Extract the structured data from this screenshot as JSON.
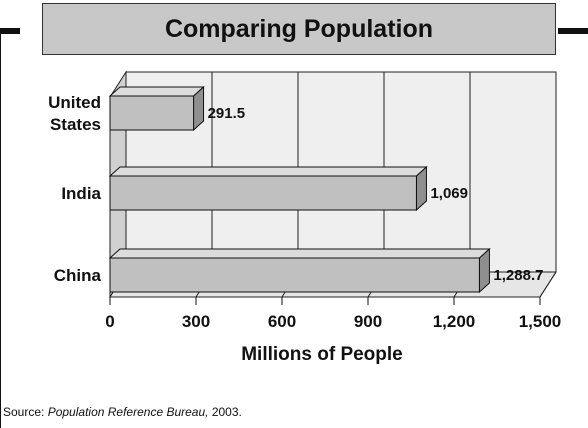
{
  "title": "Comparing Population",
  "source": {
    "prefix": "Source: ",
    "work": "Population Reference Bureau,",
    "year": " 2003."
  },
  "chart_data": {
    "type": "bar",
    "orientation": "horizontal",
    "style": "3d",
    "title": "Comparing Population",
    "xlabel": "Millions of People",
    "ylabel": "",
    "xlim": [
      0,
      1500
    ],
    "grid": true,
    "categories": [
      {
        "label_lines": [
          "United",
          "States"
        ]
      },
      {
        "label_lines": [
          "India"
        ]
      },
      {
        "label_lines": [
          "China"
        ]
      }
    ],
    "values": [
      291.5,
      1069,
      1288.7
    ],
    "value_labels": [
      "291.5",
      "1,069",
      "1,288.7"
    ],
    "x_ticks": [
      {
        "value": 0,
        "label": "0"
      },
      {
        "value": 300,
        "label": "300"
      },
      {
        "value": 600,
        "label": "600"
      },
      {
        "value": 900,
        "label": "900"
      },
      {
        "value": 1200,
        "label": "1,200"
      },
      {
        "value": 1500,
        "label": "1,500"
      }
    ],
    "colors": {
      "bar_front": "#c0c0c0",
      "bar_top": "#dcdcdc",
      "bar_side": "#8f8f8f",
      "back_wall": "#efefef",
      "side_wall": "#d0d0d0"
    }
  }
}
